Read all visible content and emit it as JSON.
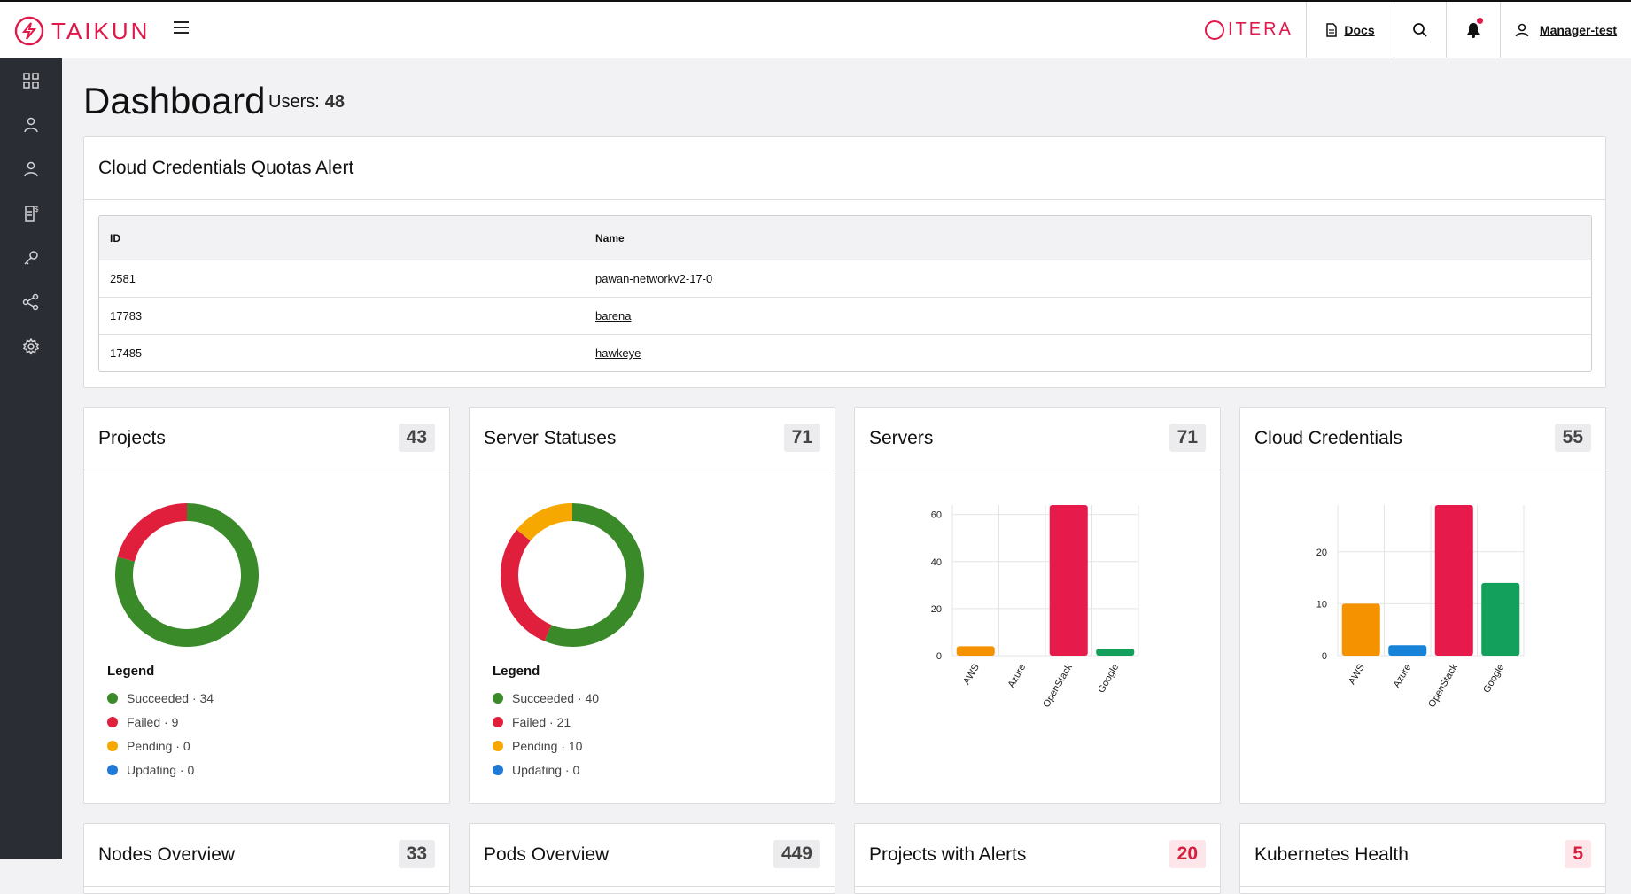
{
  "brand": {
    "name": "TAIKUN",
    "partner": "ITERA"
  },
  "header": {
    "docs_label": "Docs",
    "user_label": "Manager-test"
  },
  "page": {
    "title": "Dashboard",
    "users_label": "Users:",
    "users_count": "48"
  },
  "alerts": {
    "title": "Cloud Credentials Quotas Alert",
    "columns": [
      "ID",
      "Name"
    ],
    "rows": [
      {
        "id": "2581",
        "name": "pawan-networkv2-17-0"
      },
      {
        "id": "17783",
        "name": "barena"
      },
      {
        "id": "17485",
        "name": "hawkeye"
      }
    ]
  },
  "colors": {
    "accent": "#e0194a",
    "succeeded": "#3a8a2a",
    "failed": "#e01f3d",
    "pending": "#f7a800",
    "updating": "#1e7ad6",
    "aws": "#f59200",
    "azure": "#1683d8",
    "openstack": "#e61b4b",
    "google": "#12a05c"
  },
  "cards": {
    "projects": {
      "title": "Projects",
      "count": "43",
      "legend_title": "Legend",
      "legend": [
        "Succeeded · 34",
        "Failed · 9",
        "Pending · 0",
        "Updating · 0"
      ]
    },
    "server_statuses": {
      "title": "Server Statuses",
      "count": "71",
      "legend_title": "Legend",
      "legend": [
        "Succeeded · 40",
        "Failed · 21",
        "Pending · 10",
        "Updating · 0"
      ]
    },
    "servers": {
      "title": "Servers",
      "count": "71"
    },
    "cloud_credentials": {
      "title": "Cloud Credentials",
      "count": "55"
    },
    "nodes_overview": {
      "title": "Nodes Overview",
      "count": "33"
    },
    "pods_overview": {
      "title": "Pods Overview",
      "count": "449"
    },
    "projects_with_alerts": {
      "title": "Projects with Alerts",
      "count": "20"
    },
    "kubernetes_health": {
      "title": "Kubernetes Health",
      "count": "5"
    }
  },
  "chart_data": [
    {
      "type": "pie",
      "subtype": "donut",
      "categories": [
        "Succeeded",
        "Failed",
        "Pending",
        "Updating"
      ],
      "values": [
        34,
        9,
        0,
        0
      ]
    },
    {
      "type": "pie",
      "subtype": "donut",
      "categories": [
        "Succeeded",
        "Failed",
        "Pending",
        "Updating"
      ],
      "values": [
        40,
        21,
        10,
        0
      ]
    },
    {
      "type": "bar",
      "categories": [
        "AWS",
        "Azure",
        "OpenStack",
        "Google"
      ],
      "values": [
        4,
        0,
        64,
        3
      ],
      "ylim": [
        0,
        64
      ],
      "yticks": [
        "0",
        "20",
        "40",
        "60"
      ],
      "grid": true
    },
    {
      "type": "bar",
      "categories": [
        "AWS",
        "Azure",
        "OpenStack",
        "Google"
      ],
      "values": [
        10,
        2,
        29,
        14
      ],
      "ylim": [
        0,
        29
      ],
      "yticks": [
        "0",
        "10",
        "20"
      ],
      "grid": true
    }
  ]
}
